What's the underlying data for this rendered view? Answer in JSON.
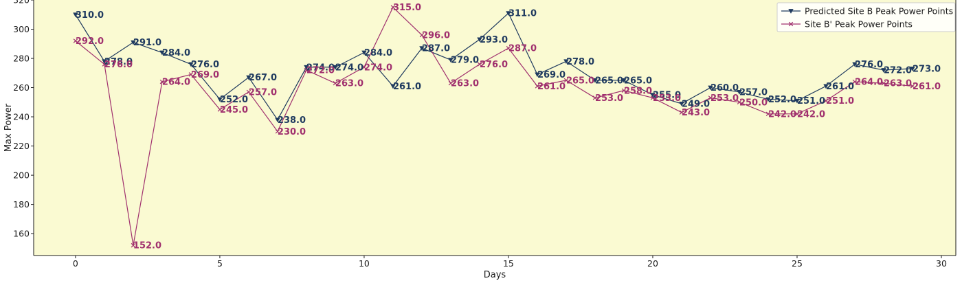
{
  "chart_data": {
    "type": "line",
    "title": "",
    "xlabel": "Days",
    "ylabel": "Max Power",
    "xlim": [
      -1.45,
      30.5
    ],
    "ylim": [
      145,
      320
    ],
    "xticks": [
      0,
      5,
      10,
      15,
      20,
      25,
      30
    ],
    "yticks": [
      160,
      180,
      200,
      220,
      240,
      260,
      280,
      300,
      320
    ],
    "grid": false,
    "legend_position": "top-right",
    "background_color": "#fafad2",
    "x": [
      0,
      1,
      2,
      3,
      4,
      5,
      6,
      7,
      8,
      9,
      10,
      11,
      12,
      13,
      14,
      15,
      16,
      17,
      18,
      19,
      20,
      21,
      22,
      23,
      24,
      25,
      26,
      27,
      28,
      29
    ],
    "series": [
      {
        "name": "Predicted Site B Peak Power Points",
        "color": "#1f3a5f",
        "label_color": "#1f3a5f",
        "marker": "triangle-down",
        "values": [
          310,
          278,
          291,
          284,
          276,
          252,
          267,
          238,
          274,
          274,
          284,
          261,
          287,
          279,
          293,
          311,
          269,
          278,
          265,
          265,
          255,
          249,
          260,
          257,
          252,
          251,
          261,
          276,
          272,
          273
        ],
        "labels": [
          "310.0",
          "278.0",
          "291.0",
          "284.0",
          "276.0",
          "252.0",
          "267.0",
          "238.0",
          "274.0",
          "274.0",
          "284.0",
          "261.0",
          "287.0",
          "279.0",
          "293.0",
          "311.0",
          "269.0",
          "278.0",
          "265.0",
          "265.0",
          "255.0",
          "249.0",
          "260.0",
          "257.0",
          "252.0",
          "251.0",
          "261.0",
          "276.0",
          "272.0",
          "273.0"
        ]
      },
      {
        "name": "Site B' Peak Power Points",
        "color": "#a0306e",
        "label_color": "#a0306e",
        "marker": "x",
        "values": [
          292,
          276,
          152,
          264,
          269,
          245,
          257,
          230,
          272,
          263,
          274,
          315,
          296,
          263,
          276,
          287,
          261,
          265,
          253,
          258,
          253,
          243,
          253,
          250,
          242,
          242,
          251,
          264,
          263,
          261
        ],
        "labels": [
          "292.0",
          "276.0",
          "152.0",
          "264.0",
          "269.0",
          "245.0",
          "257.0",
          "230.0",
          "272.0",
          "263.0",
          "274.0",
          "315.0",
          "296.0",
          "263.0",
          "276.0",
          "287.0",
          "261.0",
          "265.0",
          "253.0",
          "258.0",
          "253.0",
          "243.0",
          "253.0",
          "250.0",
          "242.0",
          "242.0",
          "251.0",
          "264.0",
          "263.0",
          "261.0"
        ]
      }
    ]
  }
}
